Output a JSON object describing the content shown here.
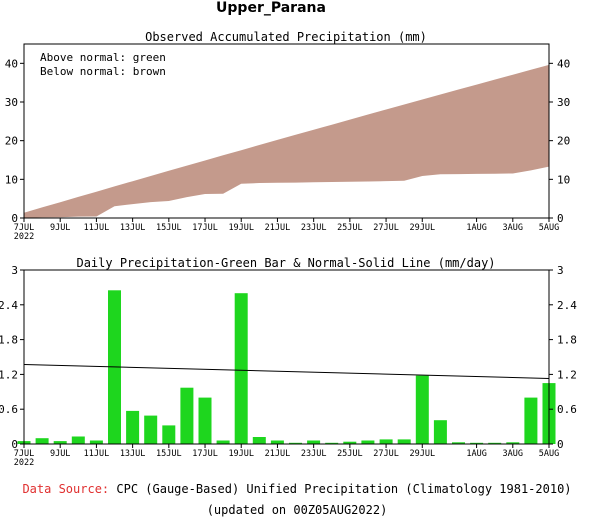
{
  "title": "Upper_Parana",
  "footer": {
    "source_label": "Data Source:",
    "source_text": " CPC (Gauge-Based) Unified Precipitation (Climatology 1981-2010)",
    "updated": "(updated on 00Z05AUG2022)"
  },
  "colors": {
    "accumulated_fill": "#c49a8c",
    "daily_bar": "#1ed61e",
    "normal_line": "#000000",
    "source_label": "#e03030"
  },
  "chart_data": [
    {
      "type": "area",
      "title": "Observed Accumulated Precipitation (mm)",
      "legend_lines": [
        "Above normal: green",
        "Below normal: brown"
      ],
      "x_tick_labels": [
        "7JUL\n2022",
        "9JUL",
        "11JUL",
        "13JUL",
        "15JUL",
        "17JUL",
        "19JUL",
        "21JUL",
        "23JUL",
        "25JUL",
        "27JUL",
        "29JUL",
        "1AUG",
        "3AUG",
        "5AUG"
      ],
      "x_tick_days": [
        0,
        2,
        4,
        6,
        8,
        10,
        12,
        14,
        16,
        18,
        20,
        22,
        25,
        27,
        29
      ],
      "ylim": [
        0,
        45
      ],
      "y_ticks": [
        0,
        10,
        20,
        30,
        40
      ],
      "series": [
        {
          "name": "Observed",
          "x": [
            0,
            1,
            2,
            3,
            4,
            5,
            6,
            7,
            8,
            9,
            10,
            11,
            12,
            13,
            14,
            15,
            16,
            17,
            18,
            19,
            20,
            21,
            22,
            23,
            24,
            25,
            26,
            27,
            28,
            29
          ],
          "values": [
            0.05,
            0.15,
            0.2,
            0.35,
            0.4,
            3.05,
            3.6,
            4.1,
            4.4,
            5.4,
            6.2,
            6.25,
            8.85,
            9.05,
            9.1,
            9.15,
            9.25,
            9.3,
            9.35,
            9.45,
            9.55,
            9.65,
            10.85,
            11.3,
            11.35,
            11.4,
            11.45,
            11.5,
            12.3,
            13.3
          ]
        },
        {
          "name": "Normal",
          "x": [
            0,
            1,
            2,
            3,
            4,
            5,
            6,
            7,
            8,
            9,
            10,
            11,
            12,
            13,
            14,
            15,
            16,
            17,
            18,
            19,
            20,
            21,
            22,
            23,
            24,
            25,
            26,
            27,
            28,
            29
          ],
          "values": [
            1.37,
            2.73,
            4.09,
            5.45,
            6.81,
            8.16,
            9.51,
            10.86,
            12.2,
            13.54,
            14.88,
            16.21,
            17.54,
            18.87,
            20.19,
            21.51,
            22.83,
            24.14,
            25.45,
            26.76,
            28.06,
            29.36,
            30.65,
            31.94,
            33.23,
            34.51,
            35.79,
            37.06,
            38.33,
            39.6
          ]
        }
      ]
    },
    {
      "type": "bar",
      "title": "Daily Precipitation-Green Bar & Normal-Solid Line (mm/day)",
      "x_tick_labels": [
        "7JUL\n2022",
        "9JUL",
        "11JUL",
        "13JUL",
        "15JUL",
        "17JUL",
        "19JUL",
        "21JUL",
        "23JUL",
        "25JUL",
        "27JUL",
        "29JUL",
        "1AUG",
        "3AUG",
        "5AUG"
      ],
      "x_tick_days": [
        0,
        2,
        4,
        6,
        8,
        10,
        12,
        14,
        16,
        18,
        20,
        22,
        25,
        27,
        29
      ],
      "ylim": [
        0,
        3
      ],
      "y_ticks": [
        0,
        0.6,
        1.2,
        1.8,
        2.4,
        3
      ],
      "y_tick_labels": [
        "0",
        "0.6",
        "1.2",
        "1.8",
        "2.4",
        "3"
      ],
      "series": [
        {
          "name": "Daily observed",
          "x": [
            0,
            1,
            2,
            3,
            4,
            5,
            6,
            7,
            8,
            9,
            10,
            11,
            12,
            13,
            14,
            15,
            16,
            17,
            18,
            19,
            20,
            21,
            22,
            23,
            24,
            25,
            26,
            27,
            28,
            29
          ],
          "values": [
            0.05,
            0.1,
            0.05,
            0.13,
            0.06,
            2.65,
            0.57,
            0.49,
            0.32,
            0.97,
            0.8,
            0.06,
            2.6,
            0.12,
            0.06,
            0.02,
            0.06,
            0.02,
            0.04,
            0.06,
            0.08,
            0.08,
            1.18,
            0.41,
            0.03,
            0.02,
            0.02,
            0.03,
            0.8,
            1.05
          ]
        },
        {
          "name": "Normal",
          "x": [
            0,
            29
          ],
          "values": [
            1.37,
            1.13
          ]
        }
      ]
    }
  ]
}
